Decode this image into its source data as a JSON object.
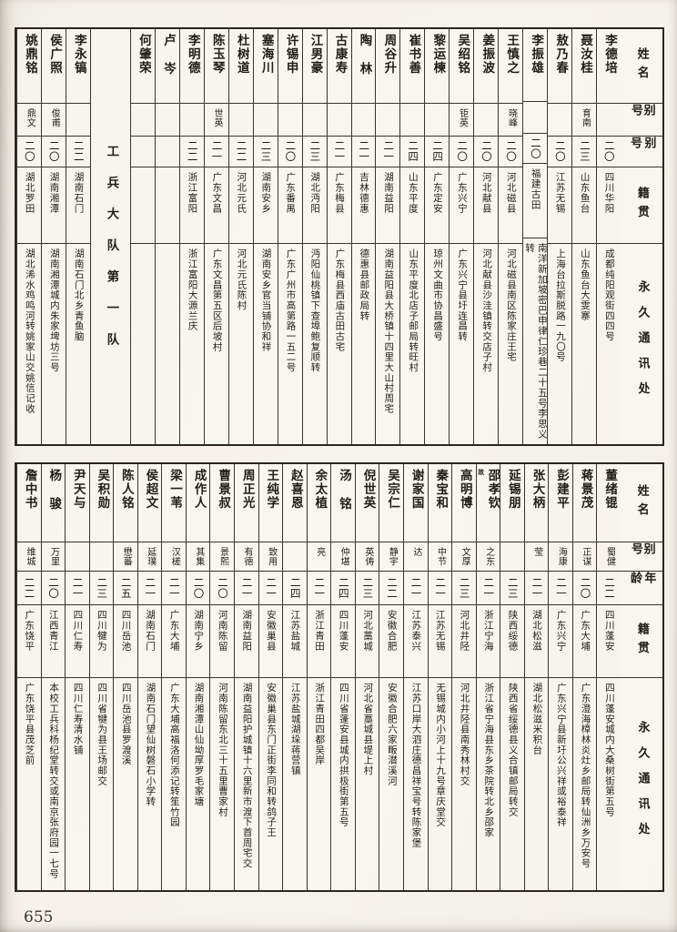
{
  "page": {
    "number": "655"
  },
  "tables": [
    {
      "id": "t1",
      "headers": {
        "name": "姓名",
        "alias": "别号",
        "age": "别号",
        "native": "籍贯",
        "address": "永久通讯处"
      },
      "people": [
        {
          "name": "李德培",
          "alias": "",
          "age": "二〇",
          "native": "四川华阳",
          "address": "成都纯阳观街四四号"
        },
        {
          "name": "聂汝桂",
          "alias": "育南",
          "age": "二三",
          "native": "山东鱼台",
          "address": "山东鱼台大雯寨"
        },
        {
          "name": "敖乃春",
          "alias": "",
          "age": "二〇",
          "native": "江苏无锡",
          "address": "上海台拉斯脱路一九〇号"
        },
        {
          "name": "李振雄",
          "alias": "",
          "age": "二〇",
          "native": "福建古田",
          "address": "南洋新加坡密巴申律仁珍巷二十五号李思义转"
        },
        {
          "name": "王慎之",
          "alias": "晓峰",
          "age": "二〇",
          "native": "河北磁县",
          "address": "河北磁县南区陈家庄王宅"
        },
        {
          "name": "姜振波",
          "alias": "",
          "age": "二〇",
          "native": "河北献县",
          "address": "河北献县沙洼镇转交店子村"
        },
        {
          "name": "吴绍铭",
          "alias": "钜英",
          "age": "二〇",
          "native": "广东兴宁",
          "address": "广东兴宁县圩连昌转"
        },
        {
          "name": "黎运楝",
          "alias": "",
          "age": "二四",
          "native": "广东定安",
          "address": "琼州文曲市协昌盛号"
        },
        {
          "name": "崔书善",
          "alias": "",
          "age": "二四",
          "native": "山东平度",
          "address": "山东平度北店子邮局转旺村"
        },
        {
          "name": "周谷升",
          "alias": "",
          "age": "二一",
          "native": "湖南益阳",
          "address": "湖南益阳县大桥镇十四里大山村周宅"
        },
        {
          "name": "陶林",
          "alias": "",
          "age": "二一",
          "native": "吉林德惠",
          "address": "德惠县邮政局转"
        },
        {
          "name": "古康寿",
          "alias": "",
          "age": "二一",
          "native": "广东梅县",
          "address": "广东梅县西庙古田古宅"
        },
        {
          "name": "江男豪",
          "alias": "",
          "age": "二三",
          "native": "湖北沔阳",
          "address": "沔阳仙桃镇下查埠鲍复顺转"
        },
        {
          "name": "许锡申",
          "alias": "",
          "age": "二〇",
          "native": "广东番禺",
          "address": "广东广州市高第路一五二号"
        },
        {
          "name": "塞海川",
          "alias": "",
          "age": "二三",
          "native": "湖南安乡",
          "address": "湖南安乡官当铺协和祥"
        },
        {
          "name": "杜树道",
          "alias": "",
          "age": "二二",
          "native": "河北元氏",
          "address": "河北元氏陈村"
        },
        {
          "name": "陈玉琴",
          "alias": "世英",
          "age": "二一",
          "native": "广东文昌",
          "address": "广东文昌第五区后坡村"
        },
        {
          "name": "李明德",
          "alias": "",
          "age": "二二",
          "native": "浙江富阳",
          "address": "浙江富阳大源兰庆"
        },
        {
          "name": "卢岑",
          "alias": "",
          "age": "",
          "native": "",
          "address": ""
        },
        {
          "name": "何肇荣",
          "alias": "",
          "age": "",
          "native": "",
          "address": ""
        },
        {
          "section": "工兵大队第一队"
        },
        {
          "name": "李永镐",
          "alias": "",
          "age": "二二",
          "native": "湖南石门",
          "address": "湖南石门北乡青鱼脑"
        },
        {
          "name": "侯广照",
          "alias": "俊甫",
          "age": "二〇",
          "native": "湖南湘潭",
          "address": "湖南湘潭城内朱家埤坊三号"
        },
        {
          "name": "姚鼎铭",
          "alias": "鼎文",
          "age": "二〇",
          "native": "湖北罗田",
          "address": "湖北浠水鸡鸣河转姚家山交姚信记收"
        }
      ]
    },
    {
      "id": "t2",
      "headers": {
        "name": "姓名",
        "alias": "别号",
        "age": "年龄",
        "native": "籍贯",
        "address": "永久通讯处"
      },
      "people": [
        {
          "name": "董绪锟",
          "alias": "蜀健",
          "age": "二二",
          "native": "四川蓬安",
          "address": "四川蓬安城内大桑树街第五号"
        },
        {
          "name": "蒋景茂",
          "alias": "正谋",
          "age": "二〇",
          "native": "广东大埔",
          "address": "广东澄海樟林炎灶乡邮局转仙洲乡万安号"
        },
        {
          "name": "彭建平",
          "alias": "海康",
          "age": "二一",
          "native": "广东兴宁",
          "address": "广东兴宁县新圩公兴祥或裕泰祥"
        },
        {
          "name": "张大柄",
          "alias": "莹",
          "age": "二一",
          "native": "湖北松滋",
          "address": "湖北松滋米积台"
        },
        {
          "name": "延锡朋",
          "alias": "",
          "age": "二三",
          "native": "陕西绥德",
          "address": "陕西省绥德县义合镇邮局转交"
        },
        {
          "name": "邵孝钦",
          "note": "故",
          "alias": "之东",
          "age": "二一",
          "native": "浙江宁海",
          "address": "浙江省宁海县东乡茶院转北乡邵家"
        },
        {
          "name": "高明博",
          "alias": "文厚",
          "age": "二三",
          "native": "河北井陉",
          "address": "河北井陉县南秀林村交"
        },
        {
          "name": "秦宝和",
          "alias": "中节",
          "age": "二一",
          "native": "江苏无锡",
          "address": "无锡城内小河上十九号章庆堂交"
        },
        {
          "name": "谢家国",
          "alias": "达",
          "age": "二一",
          "native": "江苏泰兴",
          "address": "江苏口岸大泗庄德昌祥宝号转陈家堡"
        },
        {
          "name": "吴宗仁",
          "alias": "静宇",
          "age": "二二",
          "native": "安徽合肥",
          "address": "安徽合肥六家畈潜溪河"
        },
        {
          "name": "倪世英",
          "alias": "英俦",
          "age": "二三",
          "native": "河北藁城",
          "address": "河北省藁城县堤上村"
        },
        {
          "name": "汤铭",
          "alias": "仲堪",
          "age": "二四",
          "native": "四川蓬安",
          "address": "四川省蓬安县城内拱极街第五号"
        },
        {
          "name": "余太植",
          "alias": "亮",
          "age": "二一",
          "native": "浙江青田",
          "address": "浙江青田四都吴岸"
        },
        {
          "name": "赵喜恩",
          "alias": "",
          "age": "二四",
          "native": "江苏盐城",
          "address": "江苏盐城湖垛蒋营镇"
        },
        {
          "name": "王纯学",
          "alias": "致用",
          "age": "二一",
          "native": "安徽巢县",
          "address": "安徽巢县东门正街李同和转鸽子王"
        },
        {
          "name": "周正光",
          "alias": "有德",
          "age": "二一",
          "native": "湖南益阳",
          "address": "湖南益阳护城镇十六里新市渡下首周宅交"
        },
        {
          "name": "曹景叔",
          "alias": "景熙",
          "age": "二〇",
          "native": "河南陈留",
          "address": "河南陈留东北三十五里曹家村"
        },
        {
          "name": "成作人",
          "alias": "其集",
          "age": "二〇",
          "native": "湖南宁乡",
          "address": "湖南湘潭山仙坳厚罗毛家塘"
        },
        {
          "name": "梁一苇",
          "alias": "汉槎",
          "age": "二一",
          "native": "广东大埔",
          "address": "广东大埔高福洛何添记转笙竹园"
        },
        {
          "name": "侯超文",
          "alias": "延璞",
          "age": "二一",
          "native": "湖南石门",
          "address": "湖南石门望仙树磐石小学转"
        },
        {
          "name": "陈人铭",
          "alias": "懋蕃",
          "age": "二五",
          "native": "四川岳池",
          "address": "四川岳池县罗渡溪"
        },
        {
          "name": "吴积勋",
          "alias": "",
          "age": "二三",
          "native": "四川犍为",
          "address": "四川省犍为县王场邮交"
        },
        {
          "name": "尹天与",
          "alias": "",
          "age": "二一",
          "native": "四川仁寿",
          "address": "四川仁寿清水铺"
        },
        {
          "name": "杨骏",
          "alias": "万里",
          "age": "二〇",
          "native": "江西青江",
          "address": "本校工兵科杨纪堂转交或南京张府园一七号"
        },
        {
          "name": "詹中书",
          "alias": "维城",
          "age": "二二",
          "native": "广东饶平",
          "address": "广东饶平县茂芝前"
        }
      ]
    }
  ]
}
